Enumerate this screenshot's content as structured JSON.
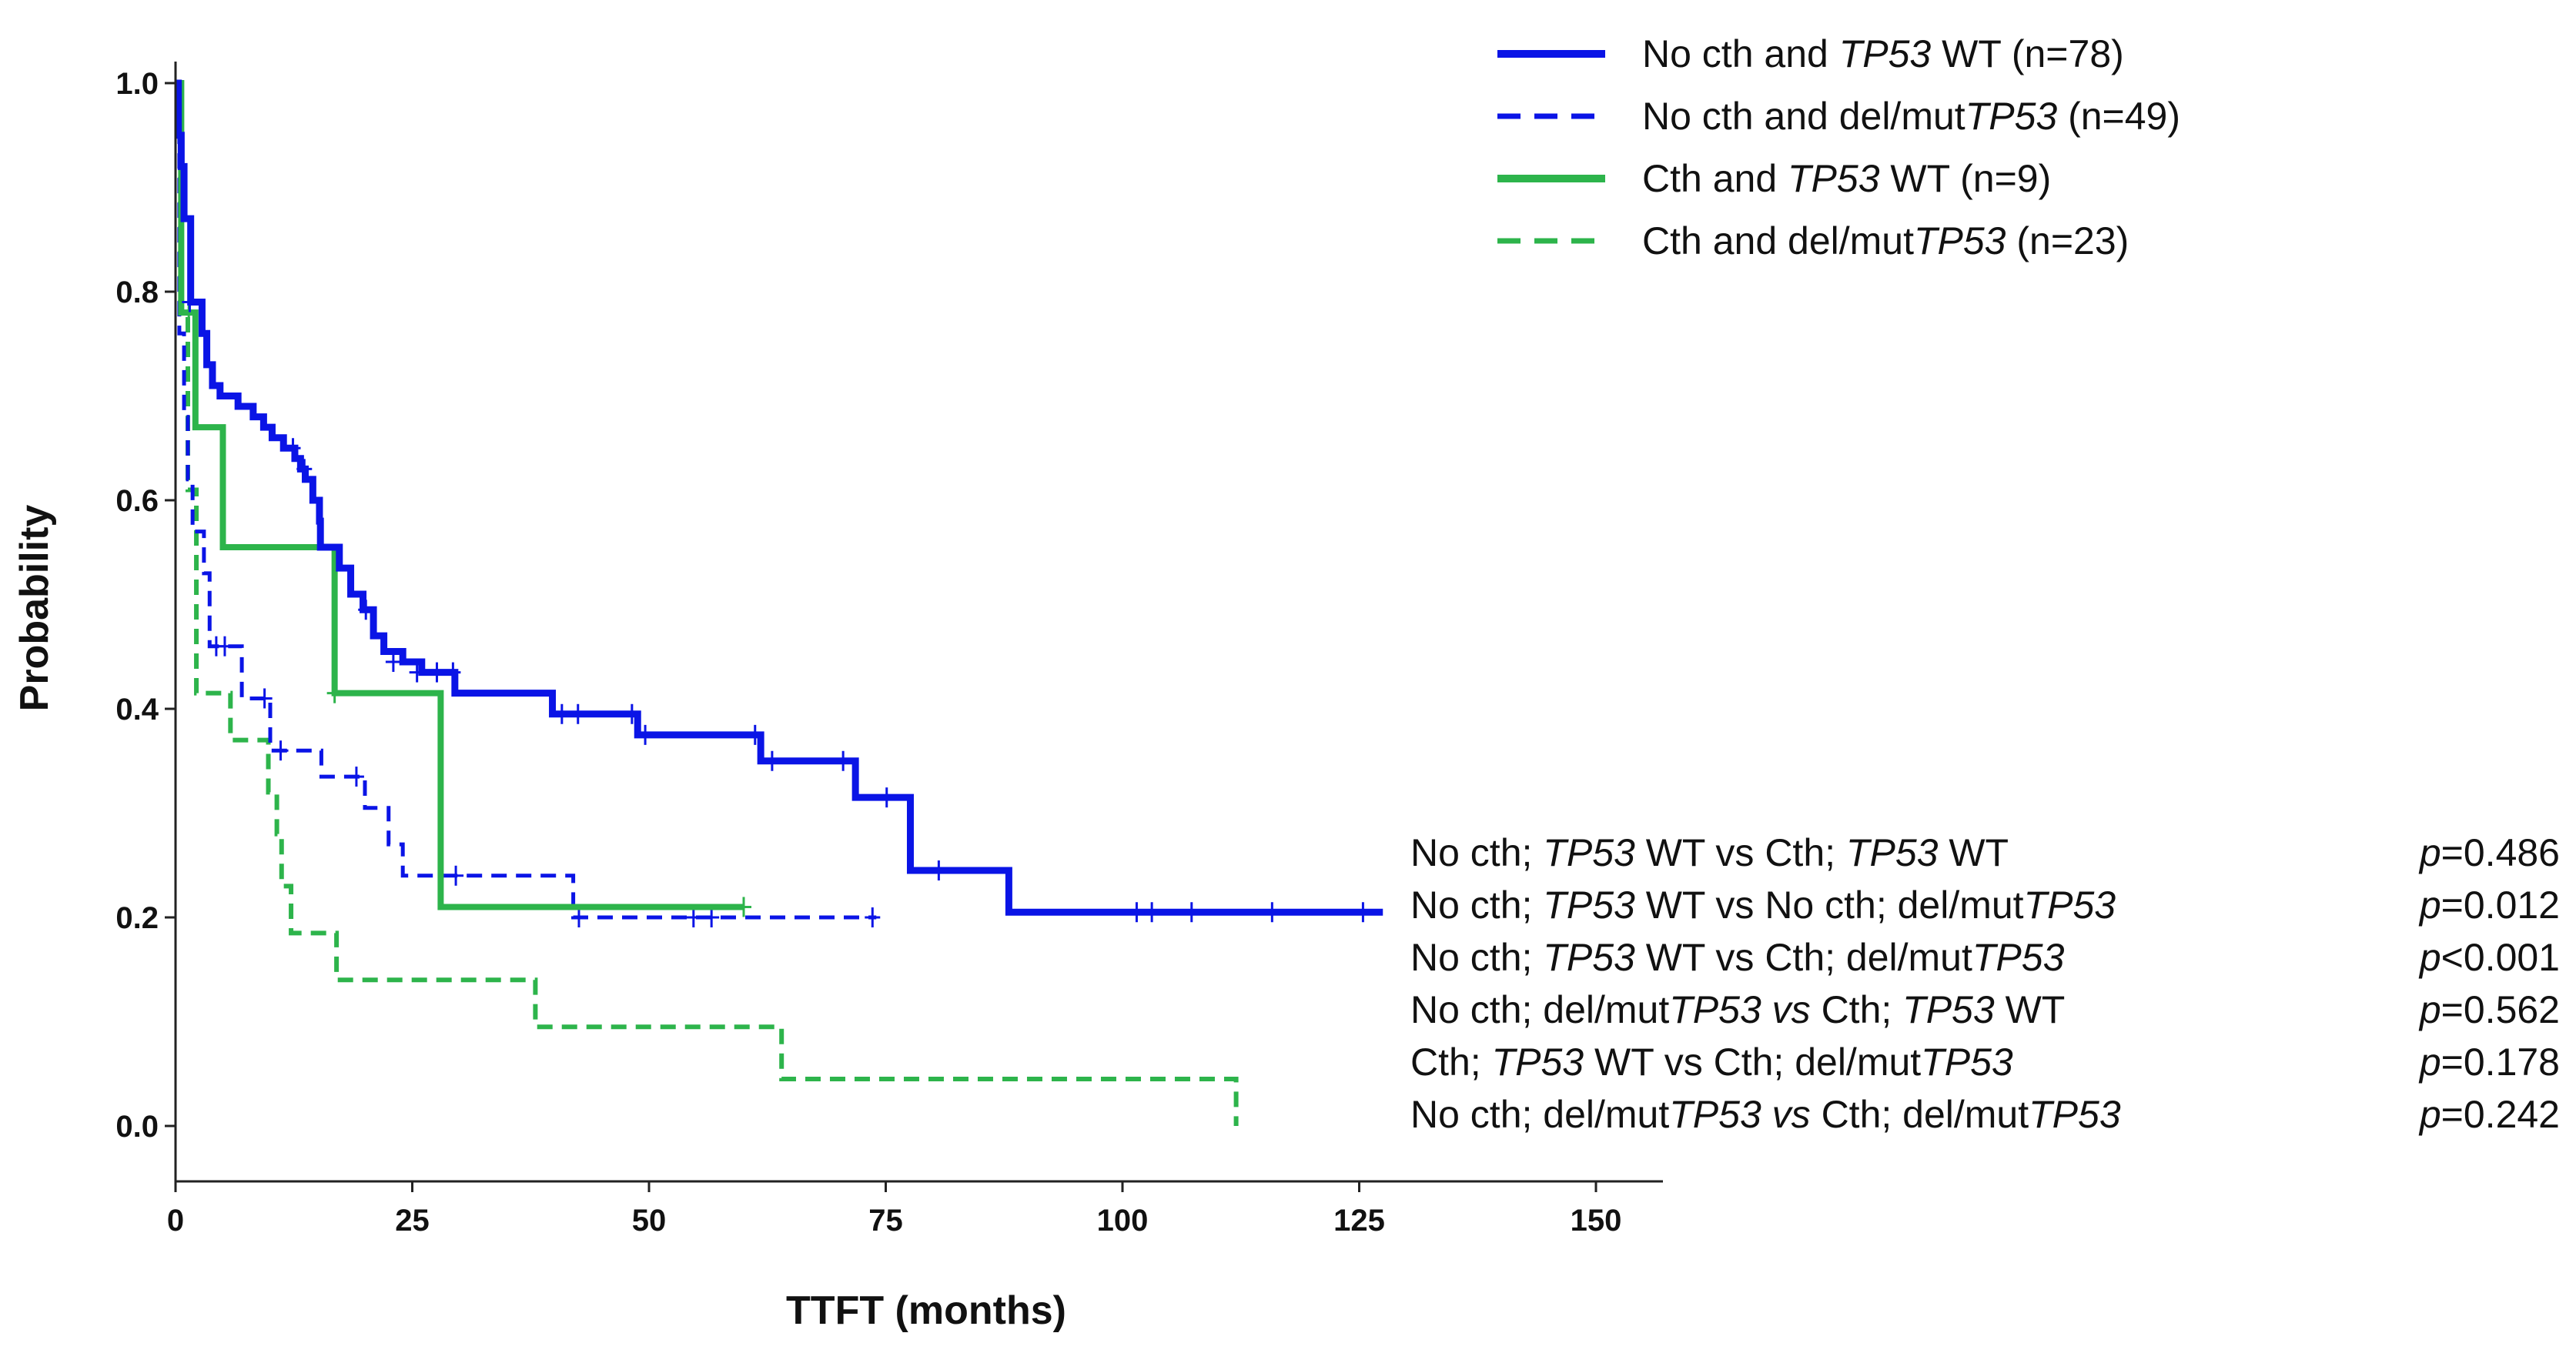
{
  "chart_data": {
    "type": "line",
    "subtype": "kaplan-meier",
    "xlabel": "TTFT (months)",
    "ylabel": "Probability",
    "xlim": [
      0,
      155
    ],
    "ylim": [
      -0.05,
      1.03
    ],
    "xticks": [
      0,
      25,
      50,
      75,
      100,
      125,
      150
    ],
    "yticks": [
      0.0,
      0.2,
      0.4,
      0.6,
      0.8,
      1.0
    ],
    "xtick_labels": [
      "0",
      "25",
      "50",
      "75",
      "100",
      "125",
      "150"
    ],
    "ytick_labels": [
      "0.0",
      "0.2",
      "0.4",
      "0.6",
      "0.8",
      "1.0"
    ],
    "grid": false,
    "legend_position": "top-right",
    "series": [
      {
        "name": "No cth and TP53 WT (n=78)",
        "label_parts": [
          {
            "text": "No cth and ",
            "italic": false
          },
          {
            "text": "TP53",
            "italic": true
          },
          {
            "text": " WT (n=78)",
            "italic": false
          }
        ],
        "color": "#0a14e6",
        "dash": "solid",
        "width": 9,
        "steps": [
          [
            0,
            1.0
          ],
          [
            0.3,
            0.95
          ],
          [
            0.6,
            0.92
          ],
          [
            0.9,
            0.87
          ],
          [
            1.6,
            0.79
          ],
          [
            2.8,
            0.76
          ],
          [
            3.3,
            0.73
          ],
          [
            3.9,
            0.71
          ],
          [
            4.7,
            0.7
          ],
          [
            6.6,
            0.69
          ],
          [
            8.2,
            0.68
          ],
          [
            9.3,
            0.67
          ],
          [
            10.2,
            0.66
          ],
          [
            11.4,
            0.65
          ],
          [
            12.6,
            0.64
          ],
          [
            13.2,
            0.63
          ],
          [
            13.7,
            0.62
          ],
          [
            14.5,
            0.6
          ],
          [
            15.2,
            0.58
          ],
          [
            15.3,
            0.555
          ],
          [
            17.3,
            0.535
          ],
          [
            18.5,
            0.51
          ],
          [
            19.8,
            0.495
          ],
          [
            20.9,
            0.47
          ],
          [
            22,
            0.455
          ],
          [
            24,
            0.445
          ],
          [
            26,
            0.435
          ],
          [
            29.5,
            0.415
          ],
          [
            39.8,
            0.395
          ],
          [
            48.8,
            0.375
          ],
          [
            61.8,
            0.35
          ],
          [
            71.8,
            0.315
          ],
          [
            77.6,
            0.245
          ],
          [
            88,
            0.205
          ],
          [
            127.5,
            0.205
          ]
        ],
        "censored": [
          [
            1.5,
            0.79
          ],
          [
            12.4,
            0.65
          ],
          [
            13.6,
            0.63
          ],
          [
            20.1,
            0.495
          ],
          [
            23,
            0.445
          ],
          [
            25.5,
            0.435
          ],
          [
            27.6,
            0.435
          ],
          [
            29.3,
            0.435
          ],
          [
            40.8,
            0.395
          ],
          [
            42.5,
            0.395
          ],
          [
            48.2,
            0.395
          ],
          [
            49.6,
            0.375
          ],
          [
            61.2,
            0.375
          ],
          [
            63,
            0.35
          ],
          [
            70.5,
            0.35
          ],
          [
            75.1,
            0.315
          ],
          [
            80.6,
            0.245
          ],
          [
            101.5,
            0.205
          ],
          [
            103.1,
            0.205
          ],
          [
            107.3,
            0.205
          ],
          [
            115.8,
            0.205
          ],
          [
            125.4,
            0.205
          ]
        ]
      },
      {
        "name": "No cth and del/mutTP53 (n=49)",
        "label_parts": [
          {
            "text": "No cth and del/mut",
            "italic": false
          },
          {
            "text": "TP53",
            "italic": true
          },
          {
            "text": " (n=49)",
            "italic": false
          }
        ],
        "color": "#0a14e6",
        "dash": "dashed",
        "width": 5,
        "steps": [
          [
            0,
            1.0
          ],
          [
            0.4,
            0.76
          ],
          [
            0.9,
            0.68
          ],
          [
            1.3,
            0.62
          ],
          [
            1.8,
            0.57
          ],
          [
            3,
            0.53
          ],
          [
            3.6,
            0.46
          ],
          [
            7,
            0.41
          ],
          [
            10,
            0.36
          ],
          [
            15.4,
            0.335
          ],
          [
            20,
            0.305
          ],
          [
            22.5,
            0.27
          ],
          [
            24,
            0.24
          ],
          [
            42,
            0.2
          ],
          [
            74,
            0.2
          ]
        ],
        "censored": [
          [
            4.3,
            0.46
          ],
          [
            5.2,
            0.46
          ],
          [
            9.4,
            0.41
          ],
          [
            11.1,
            0.36
          ],
          [
            19.1,
            0.335
          ],
          [
            29.6,
            0.24
          ],
          [
            42.6,
            0.2
          ],
          [
            54.7,
            0.2
          ],
          [
            56.6,
            0.2
          ],
          [
            73.6,
            0.2
          ]
        ]
      },
      {
        "name": "Cth and TP53 WT (n=9)",
        "label_parts": [
          {
            "text": "Cth and ",
            "italic": false
          },
          {
            "text": "TP53",
            "italic": true
          },
          {
            "text": " WT (n=9)",
            "italic": false
          }
        ],
        "color": "#2db44b",
        "dash": "solid",
        "width": 8,
        "steps": [
          [
            0,
            1.0
          ],
          [
            0.6,
            0.78
          ],
          [
            2.1,
            0.67
          ],
          [
            5,
            0.555
          ],
          [
            16.8,
            0.415
          ],
          [
            28,
            0.21
          ],
          [
            60,
            0.21
          ]
        ],
        "censored": [
          [
            1.4,
            0.78
          ],
          [
            16.8,
            0.415
          ],
          [
            60,
            0.21
          ]
        ]
      },
      {
        "name": "Cth and del/mutTP53 (n=23)",
        "label_parts": [
          {
            "text": "Cth and del/mut",
            "italic": false
          },
          {
            "text": "TP53",
            "italic": true
          },
          {
            "text": " (n=23)",
            "italic": false
          }
        ],
        "color": "#2db44b",
        "dash": "dashed",
        "width": 6,
        "steps": [
          [
            0,
            1.0
          ],
          [
            0.5,
            0.78
          ],
          [
            1.3,
            0.61
          ],
          [
            2.2,
            0.415
          ],
          [
            5.8,
            0.37
          ],
          [
            9.8,
            0.32
          ],
          [
            10.7,
            0.28
          ],
          [
            11.2,
            0.23
          ],
          [
            12.2,
            0.185
          ],
          [
            17,
            0.14
          ],
          [
            38,
            0.095
          ],
          [
            64,
            0.045
          ],
          [
            112,
            0.045
          ],
          [
            112,
            0.0
          ]
        ],
        "censored": []
      }
    ],
    "comparisons": [
      {
        "parts": [
          {
            "text": "No cth; ",
            "italic": false
          },
          {
            "text": "TP53",
            "italic": true
          },
          {
            "text": " WT vs Cth; ",
            "italic": false
          },
          {
            "text": "TP53",
            "italic": true
          },
          {
            "text": " WT",
            "italic": false
          }
        ],
        "p_symbol": "p",
        "p_value": "=0.486"
      },
      {
        "parts": [
          {
            "text": "No cth; ",
            "italic": false
          },
          {
            "text": "TP53",
            "italic": true
          },
          {
            "text": " WT vs No cth; del/mut",
            "italic": false
          },
          {
            "text": "TP53",
            "italic": true
          }
        ],
        "p_symbol": "p",
        "p_value": "=0.012"
      },
      {
        "parts": [
          {
            "text": "No cth; ",
            "italic": false
          },
          {
            "text": "TP53",
            "italic": true
          },
          {
            "text": " WT vs Cth; del/mut",
            "italic": false
          },
          {
            "text": "TP53",
            "italic": true
          }
        ],
        "p_symbol": "p",
        "p_value": "<0.001"
      },
      {
        "parts": [
          {
            "text": "No cth; del/mut",
            "italic": false
          },
          {
            "text": "TP53 vs",
            "italic": true
          },
          {
            "text": " Cth; ",
            "italic": false
          },
          {
            "text": "TP53",
            "italic": true
          },
          {
            "text": " WT",
            "italic": false
          }
        ],
        "p_symbol": "p",
        "p_value": "=0.562"
      },
      {
        "parts": [
          {
            "text": "Cth; ",
            "italic": false
          },
          {
            "text": "TP53",
            "italic": true
          },
          {
            "text": " WT vs Cth; del/mut",
            "italic": false
          },
          {
            "text": "TP53",
            "italic": true
          }
        ],
        "p_symbol": "p",
        "p_value": "=0.178"
      },
      {
        "parts": [
          {
            "text": "No cth; del/mut",
            "italic": false
          },
          {
            "text": "TP53 vs",
            "italic": true
          },
          {
            "text": " Cth; del/mut",
            "italic": false
          },
          {
            "text": "TP53",
            "italic": true
          }
        ],
        "p_symbol": "p",
        "p_value": "=0.242"
      }
    ]
  }
}
